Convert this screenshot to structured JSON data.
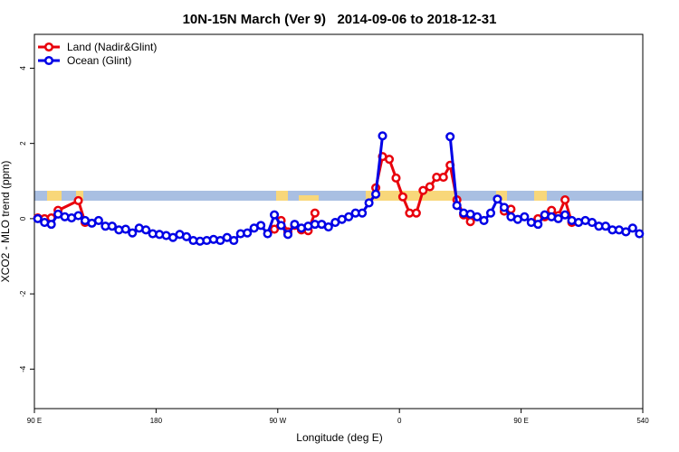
{
  "chart_data": {
    "type": "line",
    "title": "10N-15N March (Ver 9)   2014-09-06 to 2018-12-31",
    "x_label": "Longitude (deg E)",
    "y_label": "XCO2 - MLO trend (ppm)",
    "xlim": [
      90,
      540
    ],
    "xticks": [
      {
        "value": 90,
        "label": "90 E"
      },
      180,
      {
        "value": 270,
        "label": "90 W"
      },
      {
        "value": 360,
        "label": "0"
      },
      {
        "value": 450,
        "label": "90 E"
      },
      540
    ],
    "ylim": [
      -5.05,
      4.9
    ],
    "yticks": [
      -4,
      -2,
      0,
      2,
      4
    ],
    "legend": "top-left",
    "series": [
      {
        "name": "Land (Nadir&Glint)",
        "color": "#e8000b",
        "x": [
          92.5,
          97.5,
          102.5,
          107.5,
          122.5,
          127.5,
          132.5,
          267.5,
          272.5,
          277.5,
          282.5,
          287.5,
          292.5,
          297.5,
          302.5,
          342.5,
          347.5,
          352.5,
          357.5,
          362.5,
          367.5,
          372.5,
          377.5,
          382.5,
          387.5,
          392.5,
          397.5,
          402.5,
          407.5,
          412.5,
          417.5,
          437.5,
          442.5,
          447.5,
          462.5,
          467.5,
          472.5,
          477.5,
          482.5,
          487.5
        ],
        "values": [
          0.02,
          0.0,
          0.02,
          0.22,
          0.48,
          -0.1,
          null,
          -0.28,
          -0.05,
          -0.35,
          -0.18,
          -0.3,
          -0.32,
          0.15,
          null,
          0.82,
          1.65,
          1.58,
          1.08,
          0.58,
          0.15,
          0.15,
          0.75,
          0.85,
          1.1,
          1.1,
          1.42,
          0.5,
          0.1,
          -0.08,
          null,
          0.2,
          0.25,
          null,
          0.0,
          0.05,
          0.22,
          0.08,
          0.5,
          -0.1
        ]
      },
      {
        "name": "Ocean (Glint)",
        "color": "#0000e6",
        "x": [
          92.5,
          97.5,
          102.5,
          107.5,
          112.5,
          117.5,
          122.5,
          127.5,
          132.5,
          137.5,
          142.5,
          147.5,
          152.5,
          157.5,
          162.5,
          167.5,
          172.5,
          177.5,
          182.5,
          187.5,
          192.5,
          197.5,
          202.5,
          207.5,
          212.5,
          217.5,
          222.5,
          227.5,
          232.5,
          237.5,
          242.5,
          247.5,
          252.5,
          257.5,
          262.5,
          267.5,
          272.5,
          277.5,
          282.5,
          287.5,
          292.5,
          297.5,
          302.5,
          307.5,
          312.5,
          317.5,
          322.5,
          327.5,
          332.5,
          337.5,
          342.5,
          347.5,
          352.5,
          397.5,
          402.5,
          407.5,
          412.5,
          417.5,
          422.5,
          427.5,
          432.5,
          437.5,
          442.5,
          447.5,
          452.5,
          457.5,
          462.5,
          467.5,
          472.5,
          477.5,
          482.5,
          487.5,
          492.5,
          497.5,
          502.5,
          507.5,
          512.5,
          517.5,
          522.5,
          527.5,
          532.5,
          537.5
        ],
        "values": [
          0.0,
          -0.1,
          -0.15,
          0.12,
          0.05,
          0.02,
          0.08,
          -0.05,
          -0.12,
          -0.05,
          -0.2,
          -0.2,
          -0.3,
          -0.28,
          -0.38,
          -0.25,
          -0.3,
          -0.4,
          -0.42,
          -0.45,
          -0.5,
          -0.42,
          -0.48,
          -0.58,
          -0.6,
          -0.58,
          -0.55,
          -0.58,
          -0.5,
          -0.58,
          -0.4,
          -0.38,
          -0.25,
          -0.18,
          -0.4,
          0.1,
          -0.18,
          -0.42,
          -0.15,
          -0.25,
          -0.2,
          -0.15,
          -0.15,
          -0.22,
          -0.1,
          -0.02,
          0.05,
          0.15,
          0.15,
          0.42,
          0.65,
          2.2,
          null,
          2.18,
          0.35,
          0.15,
          0.12,
          0.05,
          -0.05,
          0.15,
          0.52,
          0.3,
          0.05,
          -0.02,
          0.05,
          -0.1,
          -0.15,
          0.1,
          0.05,
          0.0,
          0.1,
          -0.05,
          -0.1,
          -0.05,
          -0.1,
          -0.2,
          -0.2,
          -0.3,
          -0.3,
          -0.35,
          -0.25,
          -0.4
        ]
      }
    ]
  }
}
